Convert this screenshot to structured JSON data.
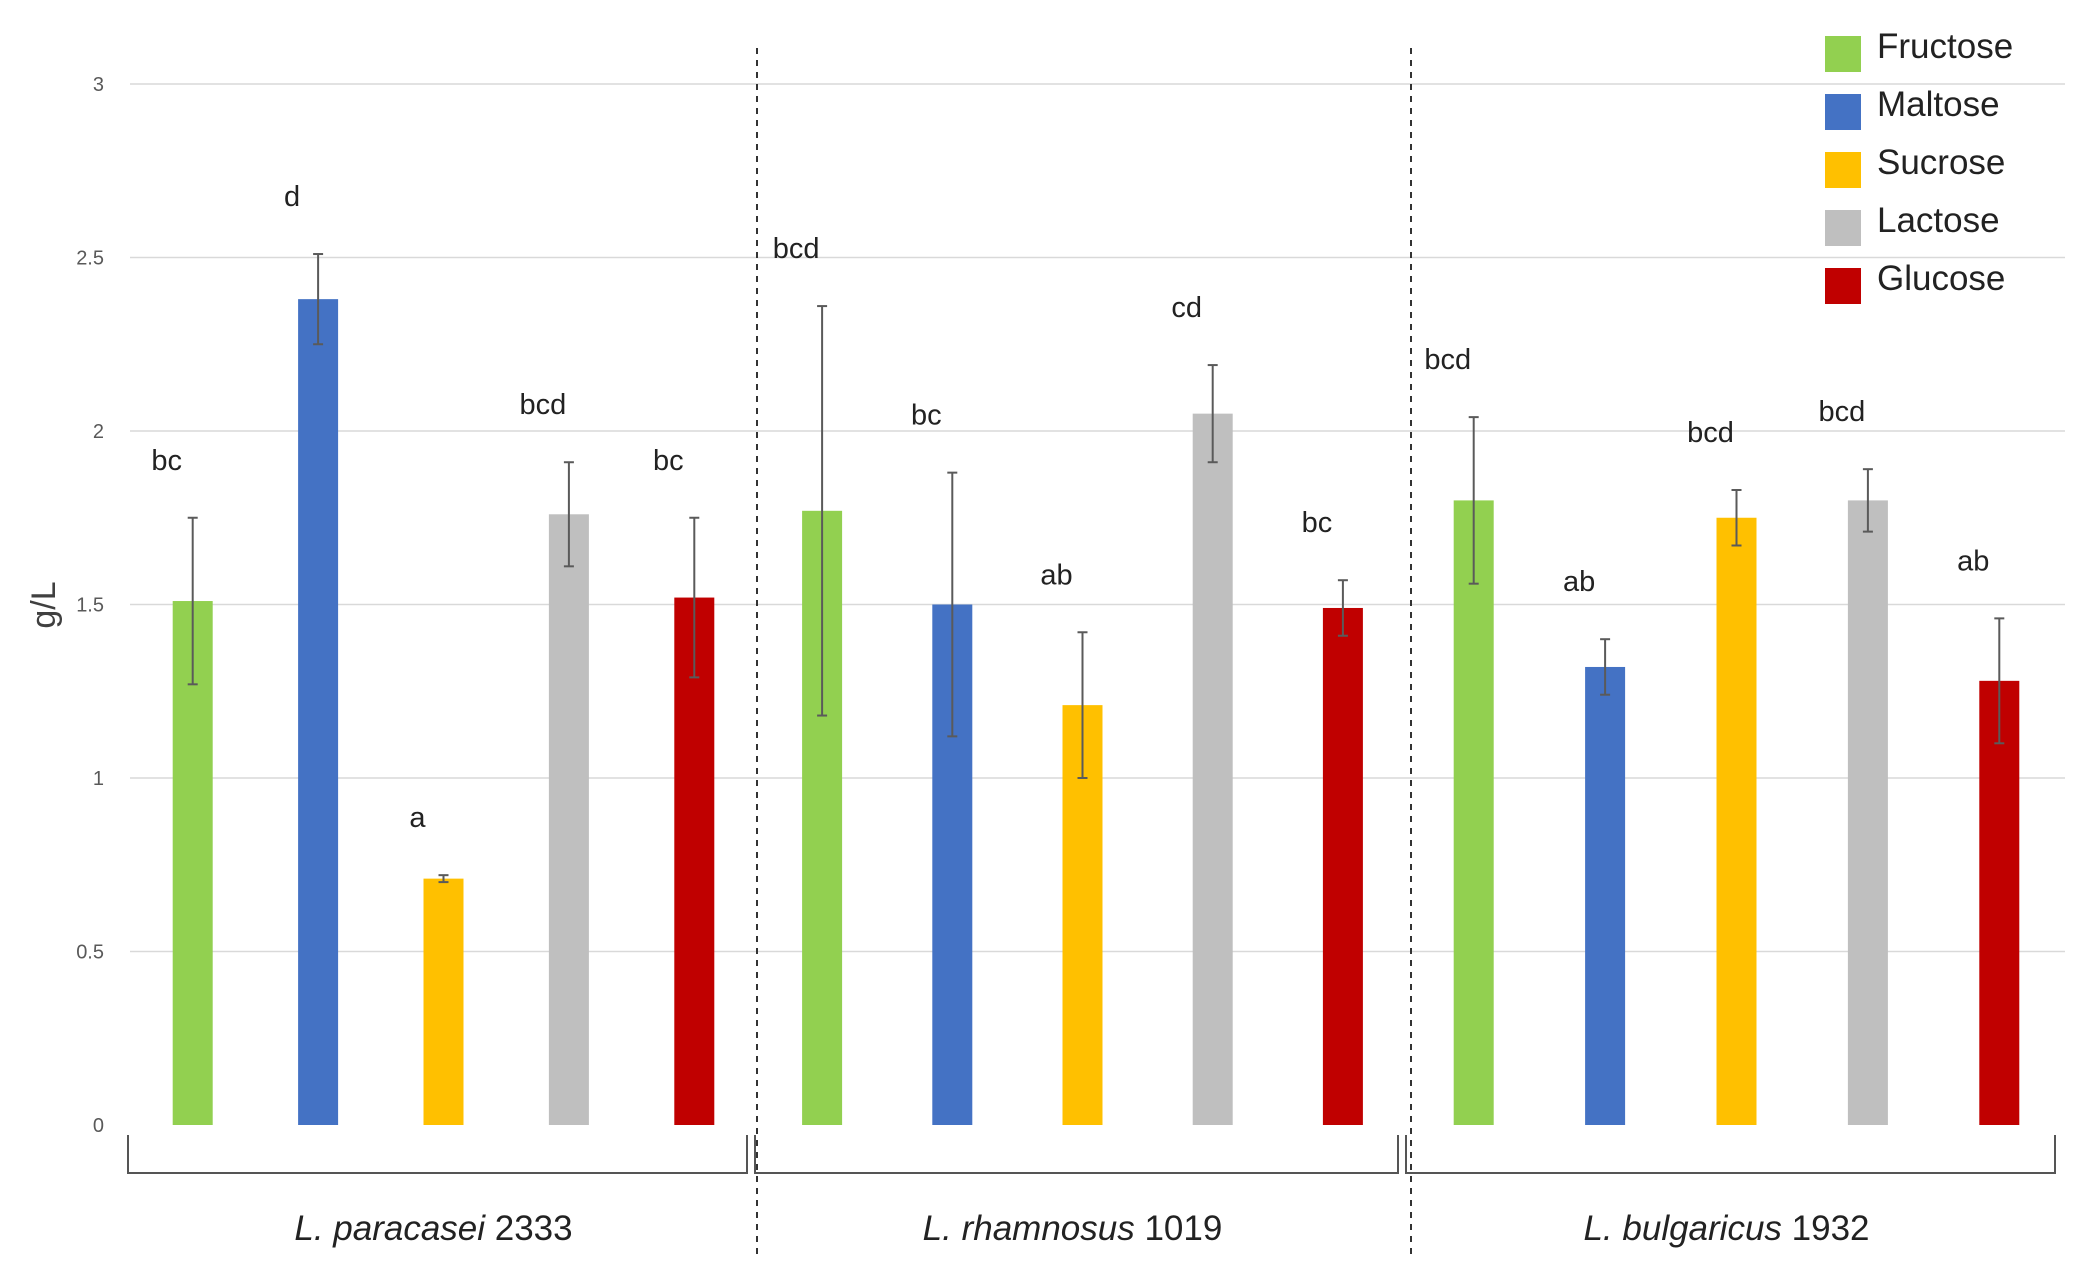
{
  "chart_data": {
    "type": "bar",
    "ylabel": "g/L",
    "ylim": [
      0,
      3
    ],
    "yticks": [
      "0",
      "0.5",
      "1",
      "1.5",
      "2",
      "2.5",
      "3"
    ],
    "grid": true,
    "legend_position": "top-right",
    "series_names": [
      "Fructose",
      "Maltose",
      "Sucrose",
      "Lactose",
      "Glucose"
    ],
    "colors": {
      "Fructose": "#92d050",
      "Maltose": "#4472c4",
      "Sucrose": "#ffc000",
      "Lactose": "#bfbfbf",
      "Glucose": "#c00000"
    },
    "groups": [
      {
        "species": "L. paracasei",
        "strain": "2333",
        "bars": [
          {
            "series": "Fructose",
            "value": 1.51,
            "error": 0.24,
            "letter": "bc"
          },
          {
            "series": "Maltose",
            "value": 2.38,
            "error": 0.13,
            "letter": "d"
          },
          {
            "series": "Sucrose",
            "value": 0.71,
            "error": 0.01,
            "letter": "a"
          },
          {
            "series": "Lactose",
            "value": 1.76,
            "error": 0.15,
            "letter": "bcd"
          },
          {
            "series": "Glucose",
            "value": 1.52,
            "error": 0.23,
            "letter": "bc"
          }
        ]
      },
      {
        "species": "L. rhamnosus",
        "strain": "1019",
        "bars": [
          {
            "series": "Fructose",
            "value": 1.77,
            "error": 0.59,
            "letter": "bcd"
          },
          {
            "series": "Maltose",
            "value": 1.5,
            "error": 0.38,
            "letter": "bc"
          },
          {
            "series": "Sucrose",
            "value": 1.21,
            "error": 0.21,
            "letter": "ab"
          },
          {
            "series": "Lactose",
            "value": 2.05,
            "error": 0.14,
            "letter": "cd"
          },
          {
            "series": "Glucose",
            "value": 1.49,
            "error": 0.08,
            "letter": "bc"
          }
        ]
      },
      {
        "species": "L. bulgaricus",
        "strain": "1932",
        "bars": [
          {
            "series": "Fructose",
            "value": 1.8,
            "error": 0.24,
            "letter": "bcd"
          },
          {
            "series": "Maltose",
            "value": 1.32,
            "error": 0.08,
            "letter": "ab"
          },
          {
            "series": "Sucrose",
            "value": 1.75,
            "error": 0.08,
            "letter": "bcd"
          },
          {
            "series": "Lactose",
            "value": 1.8,
            "error": 0.09,
            "letter": "bcd"
          },
          {
            "series": "Glucose",
            "value": 1.28,
            "error": 0.18,
            "letter": "ab"
          }
        ]
      }
    ]
  }
}
